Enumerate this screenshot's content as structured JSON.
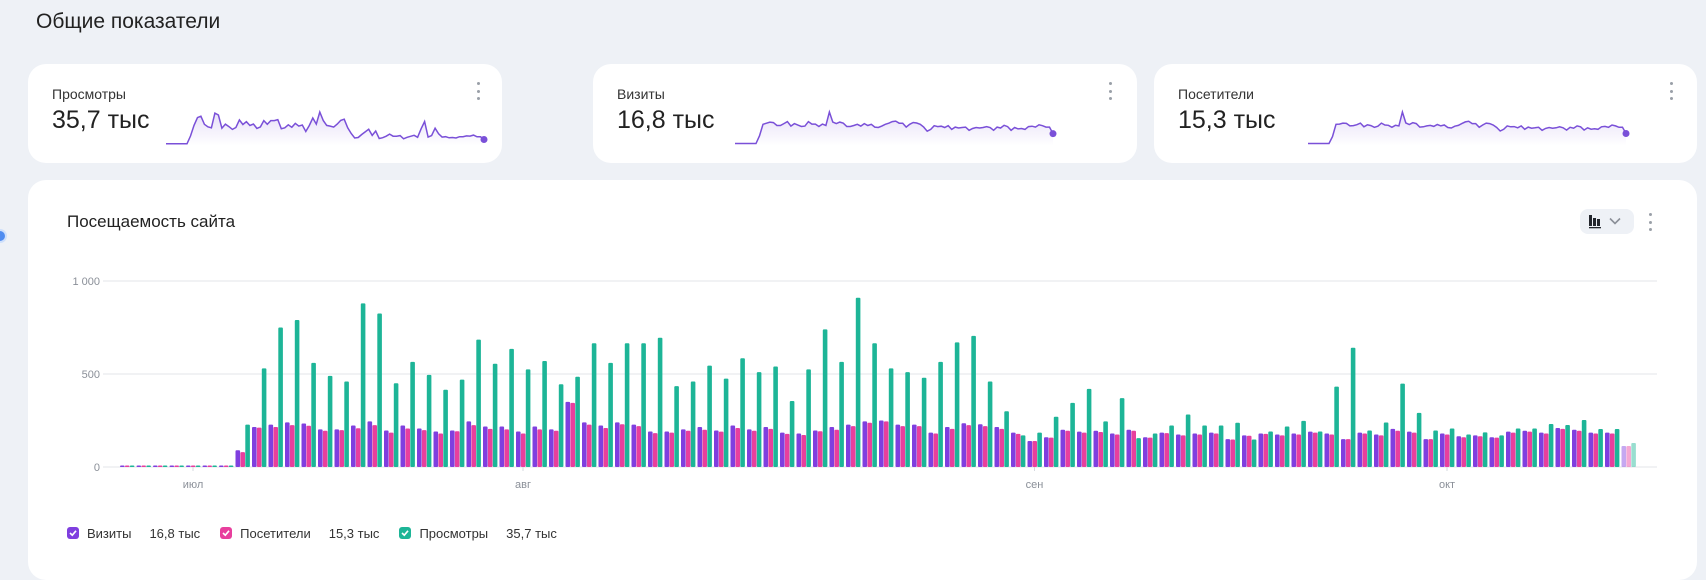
{
  "page": {
    "section_title": "Общие показатели"
  },
  "colors": {
    "visits": "#7f3fdf",
    "visitors": "#e83f9d",
    "views": "#1db597",
    "sparkline": "#7a50d8",
    "background": "#eef1f6"
  },
  "metrics": [
    {
      "label": "Просмотры",
      "value": "35,7 тыс",
      "series": "views"
    },
    {
      "label": "Визиты",
      "value": "16,8 тыс",
      "series": "visits"
    },
    {
      "label": "Посетители",
      "value": "15,3 тыс",
      "series": "visitors"
    }
  ],
  "traffic": {
    "title": "Посещаемость сайта",
    "chart_type_icon": "bar-chart-icon",
    "legend": [
      {
        "label": "Визиты",
        "total": "16,8 тыс",
        "series": "visits"
      },
      {
        "label": "Посетители",
        "total": "15,3 тыс",
        "series": "visitors"
      },
      {
        "label": "Просмотры",
        "total": "35,7 тыс",
        "series": "views"
      }
    ]
  },
  "chart_data": {
    "type": "bar",
    "title": "Посещаемость сайта",
    "xlabel": "",
    "ylabel": "",
    "ylim": [
      0,
      1000
    ],
    "y_ticks": [
      {
        "value": 0,
        "label": "0"
      },
      {
        "value": 500,
        "label": "500"
      },
      {
        "value": 1000,
        "label": "1 000"
      }
    ],
    "x_ticks": [
      {
        "label": "июл",
        "index": 4
      },
      {
        "label": "авг",
        "index": 24
      },
      {
        "label": "сен",
        "index": 55
      },
      {
        "label": "окт",
        "index": 80
      }
    ],
    "grid": true,
    "legend_position": "bottom-left",
    "last_point_partial": true,
    "series": [
      {
        "name": "Визиты",
        "key": "visits",
        "values": [
          5,
          5,
          5,
          5,
          5,
          5,
          5,
          90,
          215,
          228,
          240,
          234,
          202,
          202,
          223,
          245,
          196,
          223,
          207,
          191,
          196,
          245,
          218,
          218,
          191,
          218,
          202,
          350,
          240,
          223,
          240,
          228,
          191,
          191,
          202,
          215,
          196,
          223,
          202,
          215,
          185,
          180,
          196,
          215,
          228,
          245,
          250,
          228,
          228,
          185,
          215,
          235,
          230,
          215,
          185,
          140,
          160,
          200,
          190,
          195,
          180,
          200,
          160,
          185,
          175,
          180,
          185,
          150,
          170,
          180,
          175,
          180,
          190,
          180,
          150,
          185,
          175,
          205,
          190,
          150,
          180,
          165,
          170,
          160,
          190,
          195,
          185,
          210,
          200,
          185,
          185,
          113
        ]
      },
      {
        "name": "Посетители",
        "key": "visitors",
        "values": [
          5,
          5,
          5,
          5,
          5,
          5,
          5,
          80,
          212,
          215,
          225,
          222,
          195,
          198,
          208,
          225,
          185,
          207,
          198,
          180,
          192,
          225,
          205,
          202,
          180,
          202,
          195,
          345,
          228,
          210,
          230,
          220,
          182,
          185,
          195,
          200,
          190,
          210,
          195,
          205,
          178,
          172,
          192,
          200,
          220,
          238,
          245,
          220,
          220,
          180,
          205,
          225,
          220,
          205,
          178,
          140,
          158,
          195,
          185,
          188,
          175,
          195,
          158,
          182,
          170,
          175,
          180,
          148,
          168,
          178,
          170,
          175,
          185,
          175,
          150,
          180,
          170,
          195,
          185,
          150,
          175,
          160,
          165,
          158,
          185,
          190,
          180,
          205,
          195,
          180,
          180,
          113
        ]
      },
      {
        "name": "Просмотры",
        "key": "views",
        "values": [
          5,
          5,
          5,
          5,
          5,
          5,
          5,
          228,
          530,
          750,
          790,
          560,
          490,
          460,
          880,
          825,
          450,
          565,
          495,
          415,
          470,
          685,
          555,
          635,
          525,
          570,
          445,
          485,
          665,
          560,
          665,
          665,
          695,
          435,
          460,
          545,
          475,
          585,
          510,
          540,
          355,
          525,
          740,
          565,
          910,
          665,
          530,
          510,
          480,
          565,
          670,
          705,
          460,
          300,
          170,
          185,
          270,
          345,
          420,
          245,
          370,
          155,
          180,
          223,
          282,
          223,
          223,
          238,
          148,
          191,
          218,
          248,
          191,
          432,
          641,
          196,
          239,
          448,
          291,
          196,
          207,
          175,
          186,
          170,
          207,
          207,
          231,
          226,
          253,
          204,
          204,
          129
        ]
      }
    ]
  }
}
